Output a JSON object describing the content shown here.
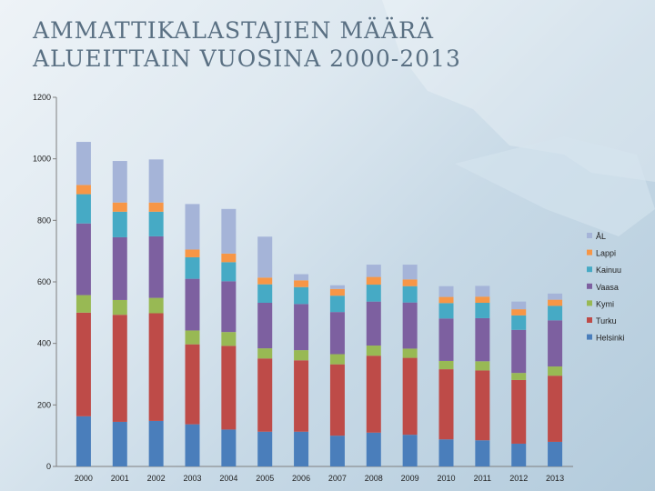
{
  "title": {
    "line1": "AMMATTIKALASTAJIEN MÄÄRÄ",
    "line2": "ALUEITTAIN VUOSINA 2000-2013"
  },
  "chart_data": {
    "type": "bar",
    "stacked": true,
    "categories": [
      "2000",
      "2001",
      "2002",
      "2003",
      "2004",
      "2005",
      "2006",
      "2007",
      "2008",
      "2009",
      "2010",
      "2011",
      "2012",
      "2013"
    ],
    "ylim": [
      0,
      1200
    ],
    "yticks": [
      "0",
      "200",
      "400",
      "600",
      "800",
      "1000",
      "1200"
    ],
    "legend_position": "right",
    "series": [
      {
        "name": "Helsinki",
        "color": "#4a7ebb",
        "values": [
          163,
          145,
          148,
          137,
          120,
          113,
          113,
          100,
          110,
          103,
          88,
          85,
          74,
          80
        ]
      },
      {
        "name": "Turku",
        "color": "#be4b48",
        "values": [
          337,
          348,
          350,
          260,
          272,
          238,
          232,
          232,
          250,
          250,
          228,
          227,
          207,
          215
        ]
      },
      {
        "name": "Kymi",
        "color": "#98b954",
        "values": [
          57,
          48,
          50,
          45,
          45,
          33,
          33,
          33,
          33,
          30,
          27,
          30,
          23,
          30
        ]
      },
      {
        "name": "Vaasa",
        "color": "#7d60a0",
        "values": [
          233,
          204,
          200,
          168,
          165,
          148,
          150,
          137,
          143,
          150,
          138,
          140,
          140,
          150
        ]
      },
      {
        "name": "Kainuu",
        "color": "#46aac5",
        "values": [
          95,
          83,
          80,
          70,
          62,
          60,
          55,
          53,
          55,
          53,
          50,
          50,
          47,
          47
        ]
      },
      {
        "name": "Lappi",
        "color": "#f79646",
        "values": [
          30,
          30,
          30,
          25,
          28,
          22,
          22,
          22,
          25,
          22,
          20,
          20,
          20,
          20
        ]
      },
      {
        "name": "ÅL",
        "color": "#a5b4d8",
        "values": [
          140,
          135,
          140,
          148,
          145,
          133,
          20,
          12,
          40,
          48,
          35,
          35,
          25,
          20
        ]
      }
    ]
  }
}
